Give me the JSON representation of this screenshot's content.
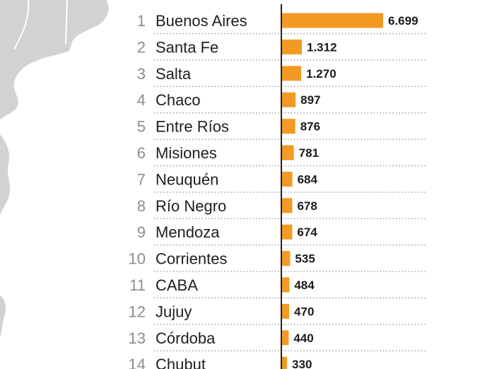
{
  "colors": {
    "bar": "#f39a22",
    "map_land": "#d2d2d2",
    "axis": "#222222"
  },
  "chart_data": {
    "type": "bar",
    "orientation": "horizontal",
    "title": "",
    "xlabel": "",
    "ylabel": "",
    "grid": false,
    "categories": [
      "Buenos Aires",
      "Santa Fe",
      "Salta",
      "Chaco",
      "Entre Ríos",
      "Misiones",
      "Neuquén",
      "Río Negro",
      "Mendoza",
      "Corrientes",
      "CABA",
      "Jujuy",
      "Córdoba",
      "Chubut"
    ],
    "ranks": [
      "1",
      "2",
      "3",
      "4",
      "5",
      "6",
      "7",
      "8",
      "9",
      "10",
      "11",
      "12",
      "13",
      "14"
    ],
    "values": [
      6699,
      1312,
      1270,
      897,
      876,
      781,
      684,
      678,
      674,
      535,
      484,
      470,
      440,
      330
    ],
    "value_labels": [
      "6.699",
      "1.312",
      "1.270",
      "897",
      "876",
      "781",
      "684",
      "678",
      "674",
      "535",
      "484",
      "470",
      "440",
      "330"
    ],
    "xlim": [
      0,
      6699
    ]
  }
}
